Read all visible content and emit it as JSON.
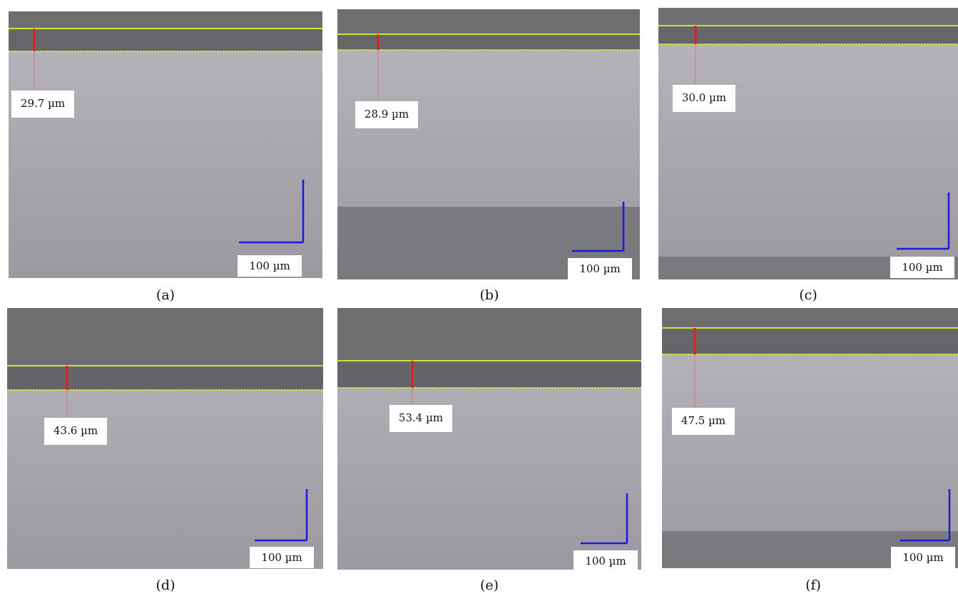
{
  "panels": [
    {
      "caption": "(a)",
      "measurement": "29.7 µm",
      "scale": "100 µm"
    },
    {
      "caption": "(b)",
      "measurement": "28.9 µm",
      "scale": "100 µm"
    },
    {
      "caption": "(c)",
      "measurement": "30.0 µm",
      "scale": "100 µm"
    },
    {
      "caption": "(d)",
      "measurement": "43.6 µm",
      "scale": "100 µm"
    },
    {
      "caption": "(e)",
      "measurement": "53.4 µm",
      "scale": "100 µm"
    },
    {
      "caption": "(f)",
      "measurement": "47.5 µm",
      "scale": "100 µm"
    }
  ]
}
